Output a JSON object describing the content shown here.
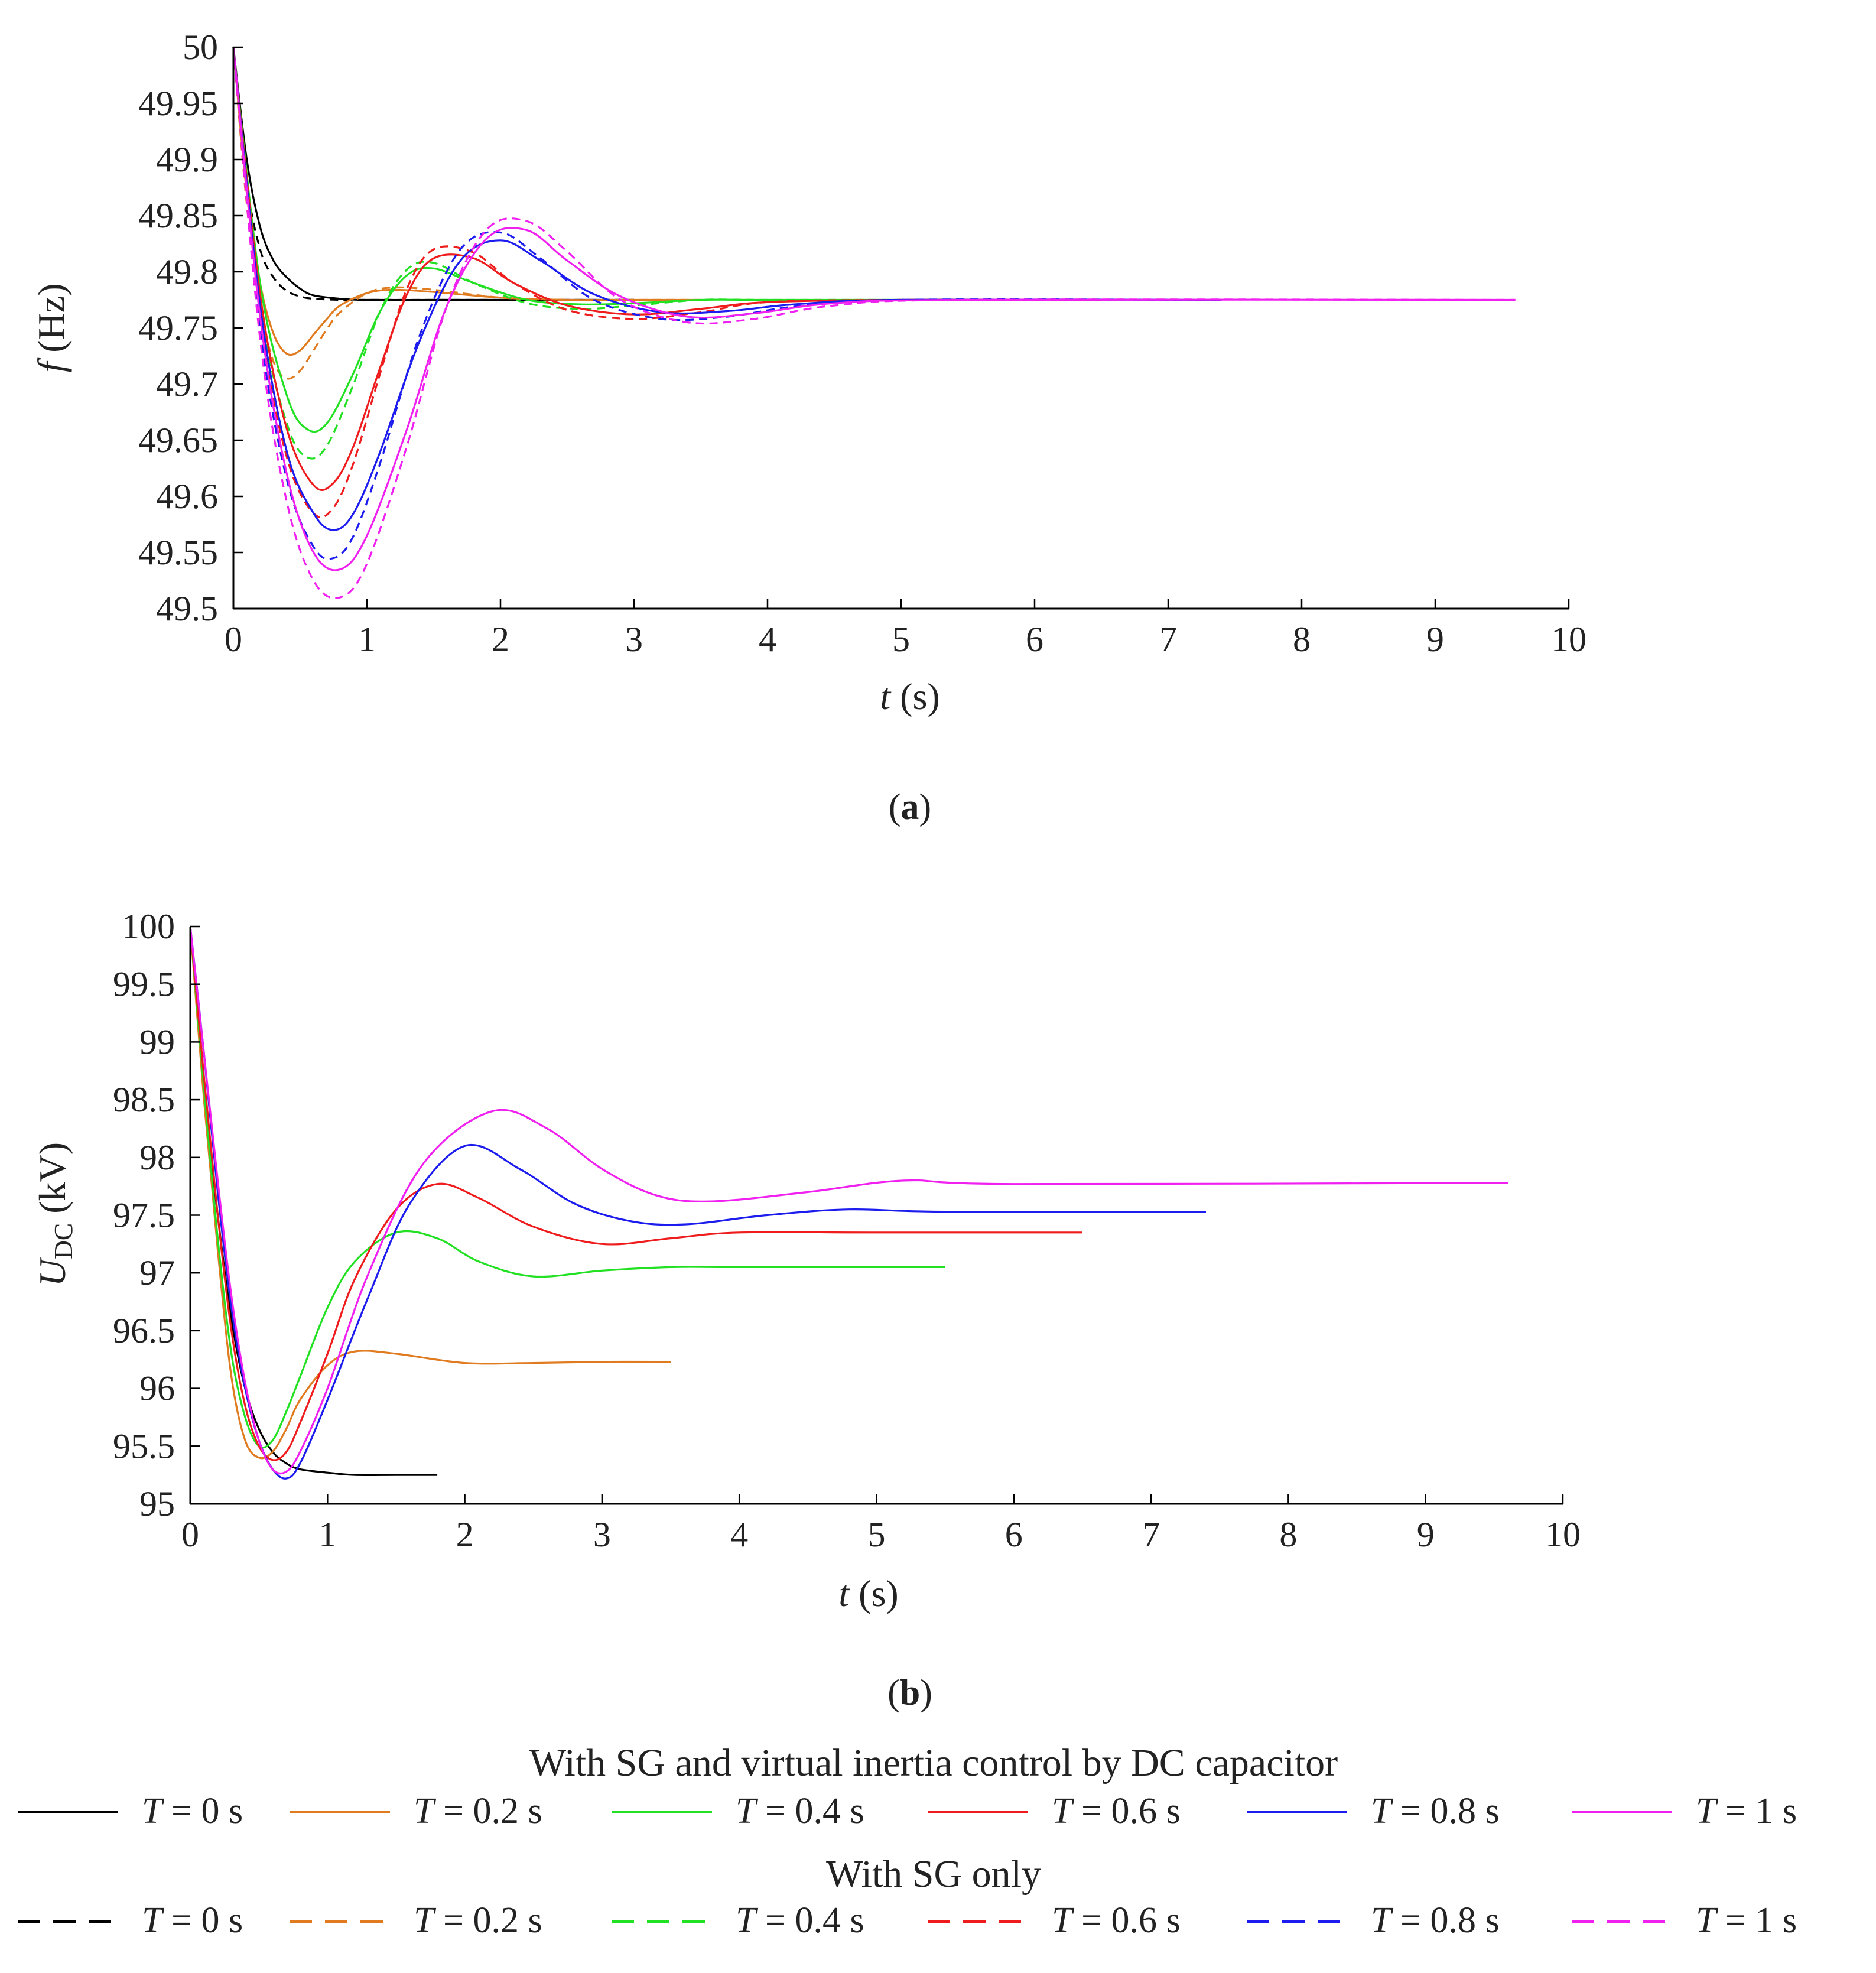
{
  "chart_data": [
    {
      "type": "line",
      "panel_label": "a",
      "xlabel_var": "t",
      "xlabel_unit": " (s)",
      "ylabel_var": "f",
      "ylabel_unit": " (Hz)",
      "xlim": [
        0,
        10
      ],
      "ylim": [
        49.5,
        50
      ],
      "xticks": [
        "0",
        "1",
        "2",
        "3",
        "4",
        "5",
        "6",
        "7",
        "8",
        "9",
        "10"
      ],
      "yticks": [
        "49.5",
        "49.55",
        "49.6",
        "49.65",
        "49.7",
        "49.75",
        "49.8",
        "49.85",
        "49.9",
        "49.95",
        "50"
      ],
      "grid": false,
      "series": [
        {
          "name": "T = 0 s (With SG and virtual inertia control)",
          "T": 0,
          "style": "solid",
          "color": "#000000",
          "x": [
            0,
            0.1,
            0.2,
            0.3,
            0.4,
            0.5,
            0.6,
            0.8,
            1.0,
            1.5,
            2.0,
            3.0
          ],
          "y": [
            50,
            49.9,
            49.84,
            49.81,
            49.795,
            49.785,
            49.779,
            49.776,
            49.775,
            49.775,
            49.775,
            49.775
          ]
        },
        {
          "name": "T = 0 s (With SG only)",
          "T": 0,
          "style": "dashed",
          "color": "#000000",
          "x": [
            0,
            0.1,
            0.2,
            0.3,
            0.4,
            0.5,
            0.6,
            0.8,
            1.0,
            1.5,
            2.0,
            3.0
          ],
          "y": [
            50,
            49.88,
            49.82,
            49.795,
            49.783,
            49.778,
            49.776,
            49.775,
            49.775,
            49.775,
            49.775,
            49.775
          ]
        },
        {
          "name": "T = 0.2 s (With SG and virtual inertia control)",
          "T": 0.2,
          "style": "solid",
          "color": "#e07b20",
          "x": [
            0,
            0.1,
            0.2,
            0.3,
            0.4,
            0.5,
            0.6,
            0.7,
            0.8,
            1.0,
            1.2,
            1.5,
            2.0,
            2.5,
            3.0,
            3.5
          ],
          "y": [
            50,
            49.87,
            49.79,
            49.745,
            49.727,
            49.73,
            49.744,
            49.758,
            49.77,
            49.781,
            49.784,
            49.782,
            49.777,
            49.775,
            49.775,
            49.775
          ]
        },
        {
          "name": "T = 0.2 s (With SG only)",
          "T": 0.2,
          "style": "dashed",
          "color": "#e07b20",
          "x": [
            0,
            0.1,
            0.2,
            0.3,
            0.4,
            0.5,
            0.6,
            0.7,
            0.8,
            1.0,
            1.2,
            1.5,
            2.0,
            2.5,
            3.0,
            3.5
          ],
          "y": [
            50,
            49.86,
            49.77,
            49.72,
            49.705,
            49.712,
            49.73,
            49.749,
            49.764,
            49.781,
            49.786,
            49.784,
            49.777,
            49.775,
            49.775,
            49.775
          ]
        },
        {
          "name": "T = 0.4 s (With SG and virtual inertia control)",
          "T": 0.4,
          "style": "solid",
          "color": "#22e022",
          "x": [
            0,
            0.2,
            0.4,
            0.55,
            0.7,
            0.9,
            1.1,
            1.3,
            1.5,
            1.8,
            2.2,
            2.6,
            3.0,
            3.5,
            4.0,
            5.5
          ],
          "y": [
            50,
            49.79,
            49.69,
            49.66,
            49.665,
            49.71,
            49.765,
            49.797,
            49.803,
            49.79,
            49.775,
            49.771,
            49.772,
            49.775,
            49.775,
            49.775
          ]
        },
        {
          "name": "T = 0.4 s (With SG only)",
          "T": 0.4,
          "style": "dashed",
          "color": "#22e022",
          "x": [
            0,
            0.2,
            0.4,
            0.55,
            0.7,
            0.9,
            1.1,
            1.3,
            1.5,
            1.8,
            2.2,
            2.6,
            3.0,
            3.5,
            4.0,
            5.5
          ],
          "y": [
            50,
            49.77,
            49.665,
            49.635,
            49.645,
            49.7,
            49.765,
            49.802,
            49.808,
            49.79,
            49.772,
            49.767,
            49.77,
            49.775,
            49.775,
            49.775
          ]
        },
        {
          "name": "T = 0.6 s (With SG and virtual inertia control)",
          "T": 0.6,
          "style": "solid",
          "color": "#ee1c1c",
          "x": [
            0,
            0.2,
            0.4,
            0.6,
            0.75,
            0.9,
            1.1,
            1.3,
            1.5,
            1.8,
            2.1,
            2.5,
            3.0,
            3.5,
            4.0,
            5.0,
            6.5
          ],
          "y": [
            50,
            49.78,
            49.66,
            49.61,
            49.612,
            49.645,
            49.715,
            49.78,
            49.812,
            49.812,
            49.79,
            49.77,
            49.762,
            49.767,
            49.773,
            49.775,
            49.775
          ]
        },
        {
          "name": "T = 0.6 s (With SG only)",
          "T": 0.6,
          "style": "dashed",
          "color": "#ee1c1c",
          "x": [
            0,
            0.2,
            0.4,
            0.6,
            0.75,
            0.9,
            1.1,
            1.3,
            1.5,
            1.8,
            2.1,
            2.5,
            3.0,
            3.5,
            4.0,
            5.0,
            6.5
          ],
          "y": [
            50,
            49.76,
            49.635,
            49.585,
            49.59,
            49.63,
            49.71,
            49.785,
            49.82,
            49.817,
            49.79,
            49.766,
            49.758,
            49.764,
            49.773,
            49.775,
            49.775
          ]
        },
        {
          "name": "T = 0.8 s (With SG and virtual inertia control)",
          "T": 0.8,
          "style": "solid",
          "color": "#1c1cee",
          "x": [
            0,
            0.2,
            0.4,
            0.6,
            0.75,
            0.9,
            1.1,
            1.4,
            1.7,
            2.0,
            2.3,
            2.7,
            3.2,
            3.7,
            4.2,
            5.0,
            7.4
          ],
          "y": [
            50,
            49.77,
            49.64,
            49.585,
            49.57,
            49.585,
            49.64,
            49.74,
            49.81,
            49.828,
            49.81,
            49.78,
            49.764,
            49.765,
            49.771,
            49.775,
            49.775
          ]
        },
        {
          "name": "T = 0.8 s (With SG only)",
          "T": 0.8,
          "style": "dashed",
          "color": "#1c1cee",
          "x": [
            0,
            0.2,
            0.4,
            0.6,
            0.75,
            0.9,
            1.1,
            1.4,
            1.7,
            2.0,
            2.3,
            2.7,
            3.2,
            3.7,
            4.2,
            5.0,
            7.4
          ],
          "y": [
            50,
            49.75,
            49.615,
            49.555,
            49.545,
            49.565,
            49.63,
            49.745,
            49.82,
            49.835,
            49.812,
            49.775,
            49.758,
            49.76,
            49.769,
            49.775,
            49.775
          ]
        },
        {
          "name": "T = 1 s (With SG and virtual inertia control)",
          "T": 1,
          "style": "solid",
          "color": "#f020f0",
          "x": [
            0,
            0.2,
            0.4,
            0.6,
            0.8,
            1.0,
            1.3,
            1.6,
            1.9,
            2.2,
            2.5,
            2.9,
            3.4,
            3.9,
            4.5,
            5.5,
            9.6
          ],
          "y": [
            50,
            49.76,
            49.62,
            49.55,
            49.535,
            49.565,
            49.66,
            49.77,
            49.83,
            49.837,
            49.81,
            49.778,
            49.76,
            49.763,
            49.772,
            49.775,
            49.775
          ]
        },
        {
          "name": "T = 1 s (With SG only)",
          "T": 1,
          "style": "dashed",
          "color": "#f020f0",
          "x": [
            0,
            0.2,
            0.4,
            0.6,
            0.8,
            1.0,
            1.3,
            1.6,
            1.9,
            2.2,
            2.5,
            2.9,
            3.4,
            3.9,
            4.5,
            5.5,
            9.6
          ],
          "y": [
            50,
            49.74,
            49.595,
            49.525,
            49.51,
            49.54,
            49.645,
            49.77,
            49.838,
            49.845,
            49.818,
            49.775,
            49.755,
            49.758,
            49.77,
            49.775,
            49.775
          ]
        }
      ]
    },
    {
      "type": "line",
      "panel_label": "b",
      "xlabel_var": "t",
      "xlabel_unit": " (s)",
      "ylabel_var": "U",
      "ylabel_sub": "DC",
      "ylabel_unit": " (kV)",
      "xlim": [
        0,
        10
      ],
      "ylim": [
        95,
        100
      ],
      "xticks": [
        "0",
        "1",
        "2",
        "3",
        "4",
        "5",
        "6",
        "7",
        "8",
        "9",
        "10"
      ],
      "yticks": [
        "95",
        "95.5",
        "96",
        "96.5",
        "97",
        "97.5",
        "98",
        "98.5",
        "99",
        "99.5",
        "100"
      ],
      "grid": false,
      "series": [
        {
          "name": "T = 0 s",
          "T": 0,
          "style": "solid",
          "color": "#000000",
          "x": [
            0,
            0.1,
            0.2,
            0.3,
            0.4,
            0.5,
            0.6,
            0.7,
            0.8,
            1.0,
            1.2,
            1.5,
            1.8
          ],
          "y": [
            100,
            98.6,
            97.5,
            96.6,
            96.0,
            95.65,
            95.45,
            95.35,
            95.3,
            95.27,
            95.25,
            95.25,
            95.25
          ]
        },
        {
          "name": "T = 0.2 s",
          "T": 0.2,
          "style": "solid",
          "color": "#e07b20",
          "x": [
            0,
            0.1,
            0.2,
            0.3,
            0.4,
            0.5,
            0.6,
            0.7,
            0.8,
            1.0,
            1.2,
            1.5,
            2.0,
            2.5,
            3.0,
            3.5
          ],
          "y": [
            100,
            98.5,
            97.2,
            96.1,
            95.55,
            95.4,
            95.45,
            95.65,
            95.9,
            96.2,
            96.32,
            96.3,
            96.22,
            96.22,
            96.23,
            96.23
          ]
        },
        {
          "name": "T = 0.4 s",
          "T": 0.4,
          "style": "solid",
          "color": "#22e022",
          "x": [
            0,
            0.1,
            0.2,
            0.3,
            0.4,
            0.5,
            0.6,
            0.7,
            0.8,
            1.0,
            1.2,
            1.5,
            1.8,
            2.1,
            2.5,
            3.0,
            3.5,
            4.0,
            5.5
          ],
          "y": [
            100,
            98.6,
            97.3,
            96.3,
            95.75,
            95.5,
            95.55,
            95.8,
            96.1,
            96.7,
            97.1,
            97.35,
            97.3,
            97.1,
            96.97,
            97.02,
            97.05,
            97.05,
            97.05
          ]
        },
        {
          "name": "T = 0.6 s",
          "T": 0.6,
          "style": "solid",
          "color": "#ee1c1c",
          "x": [
            0,
            0.1,
            0.2,
            0.3,
            0.4,
            0.5,
            0.6,
            0.7,
            0.8,
            1.0,
            1.2,
            1.5,
            1.8,
            2.1,
            2.5,
            3.0,
            3.5,
            4.0,
            5.0,
            6.5
          ],
          "y": [
            100,
            98.7,
            97.5,
            96.5,
            95.85,
            95.5,
            95.38,
            95.45,
            95.7,
            96.3,
            96.95,
            97.55,
            97.77,
            97.65,
            97.4,
            97.25,
            97.3,
            97.35,
            97.35,
            97.35
          ]
        },
        {
          "name": "T = 0.8 s",
          "T": 0.8,
          "style": "solid",
          "color": "#1c1cee",
          "x": [
            0,
            0.1,
            0.2,
            0.3,
            0.4,
            0.5,
            0.6,
            0.7,
            0.8,
            1.0,
            1.3,
            1.6,
            2.0,
            2.4,
            2.8,
            3.2,
            3.6,
            4.2,
            4.8,
            5.5,
            7.4
          ],
          "y": [
            100,
            98.9,
            97.7,
            96.7,
            96.0,
            95.55,
            95.3,
            95.22,
            95.35,
            95.9,
            96.8,
            97.6,
            98.1,
            97.9,
            97.6,
            97.45,
            97.42,
            97.5,
            97.55,
            97.53,
            97.53
          ]
        },
        {
          "name": "T = 1 s",
          "T": 1,
          "style": "solid",
          "color": "#f020f0",
          "x": [
            0,
            0.1,
            0.2,
            0.3,
            0.4,
            0.5,
            0.6,
            0.7,
            0.8,
            1.0,
            1.3,
            1.7,
            2.2,
            2.6,
            3.0,
            3.4,
            3.8,
            4.5,
            5.2,
            6.0,
            9.6
          ],
          "y": [
            100,
            98.9,
            97.8,
            96.8,
            96.05,
            95.55,
            95.3,
            95.28,
            95.45,
            96.0,
            97.0,
            97.95,
            98.4,
            98.25,
            97.9,
            97.67,
            97.62,
            97.7,
            97.8,
            97.77,
            97.78
          ]
        }
      ]
    }
  ],
  "legend": {
    "title_virtual": "With SG and virtual inertia control by DC capacitor",
    "title_sg_only": "With SG only",
    "items": [
      {
        "var": "T",
        "value_text": " = 0 s",
        "color": "#000000"
      },
      {
        "var": "T",
        "value_text": " = 0.2 s",
        "color": "#e07b20"
      },
      {
        "var": "T",
        "value_text": " = 0.4 s",
        "color": "#22e022"
      },
      {
        "var": "T",
        "value_text": " = 0.6 s",
        "color": "#ee1c1c"
      },
      {
        "var": "T",
        "value_text": " = 0.8 s",
        "color": "#1c1cee"
      },
      {
        "var": "T",
        "value_text": " = 1 s",
        "color": "#f020f0"
      }
    ]
  }
}
